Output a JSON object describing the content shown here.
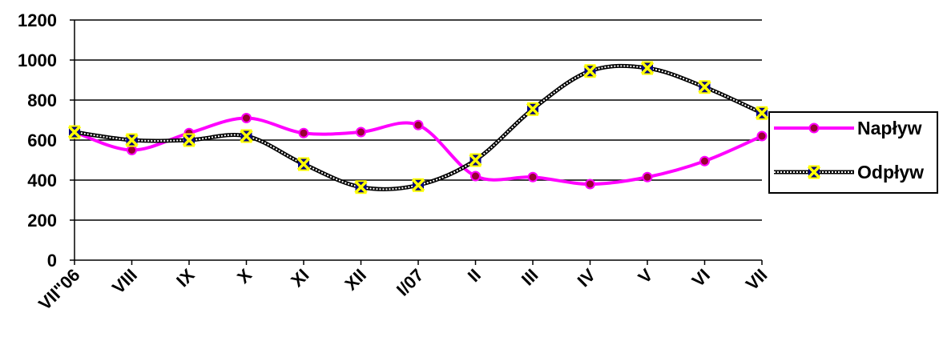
{
  "chart_data": {
    "type": "line",
    "categories": [
      "VII\"06",
      "VIII",
      "IX",
      "X",
      "XI",
      "XII",
      "I/07",
      "II",
      "III",
      "IV",
      "V",
      "VI",
      "VII"
    ],
    "series": [
      {
        "name": "Napływ",
        "color": "#FF00FF",
        "marker_color": "#990033",
        "marker": "circle",
        "line_style": "solid",
        "values": [
          640,
          550,
          635,
          710,
          635,
          640,
          675,
          420,
          415,
          380,
          415,
          495,
          620
        ]
      },
      {
        "name": "Odpływ",
        "color": "#000000",
        "marker_color": "#FFFF00",
        "marker": "x",
        "line_style": "dotted",
        "values": [
          640,
          600,
          600,
          620,
          480,
          365,
          375,
          500,
          755,
          945,
          960,
          865,
          735
        ]
      }
    ],
    "y_ticks": [
      "0",
      "200",
      "400",
      "600",
      "800",
      "1000",
      "1200"
    ],
    "ylim": [
      0,
      1200
    ],
    "grid": true,
    "legend_position": "right",
    "title": "",
    "xlabel": "",
    "ylabel": ""
  }
}
